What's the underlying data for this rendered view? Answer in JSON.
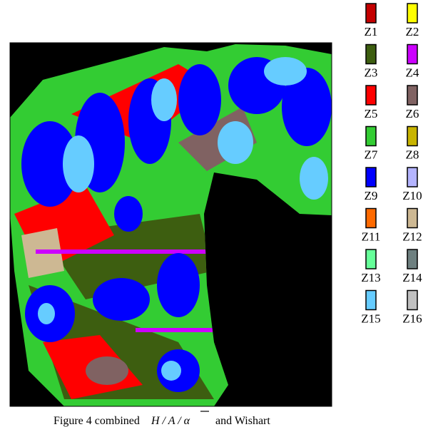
{
  "figure": {
    "legend": [
      {
        "label": "Z1",
        "color": "#c40000"
      },
      {
        "label": "Z2",
        "color": "#ffff00"
      },
      {
        "label": "Z3",
        "color": "#3d5e10"
      },
      {
        "label": "Z4",
        "color": "#cc00ff"
      },
      {
        "label": "Z5",
        "color": "#ff0000"
      },
      {
        "label": "Z6",
        "color": "#806262"
      },
      {
        "label": "Z7",
        "color": "#33cc33"
      },
      {
        "label": "Z8",
        "color": "#c8b400"
      },
      {
        "label": "Z9",
        "color": "#0000ff"
      },
      {
        "label": "Z10",
        "color": "#b4b4ff"
      },
      {
        "label": "Z11",
        "color": "#ff6a00"
      },
      {
        "label": "Z12",
        "color": "#cdb893"
      },
      {
        "label": "Z13",
        "color": "#66ff99"
      },
      {
        "label": "Z14",
        "color": "#6e8080"
      },
      {
        "label": "Z15",
        "color": "#66ccff"
      },
      {
        "label": "Z16",
        "color": "#c0c0c0"
      }
    ],
    "caption": {
      "prefix": "Figure 4 combined",
      "math": "H / A / α",
      "suffix": "and Wishart"
    }
  }
}
